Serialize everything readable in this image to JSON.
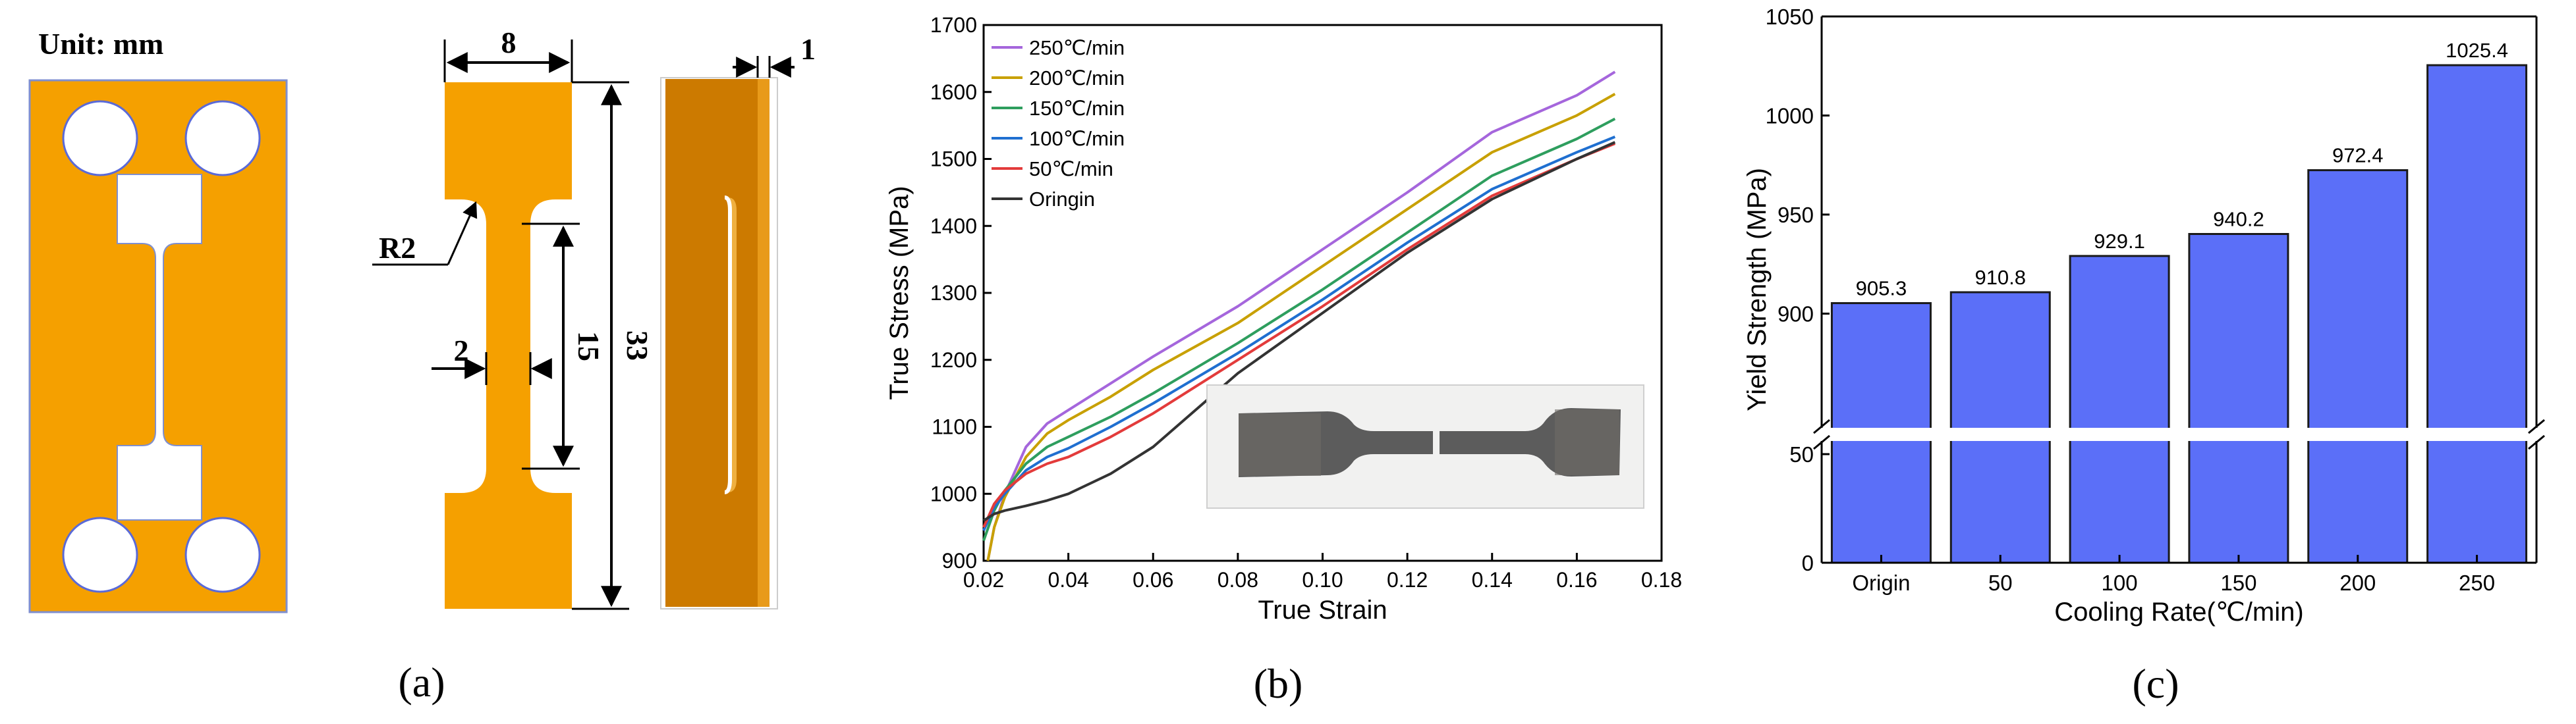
{
  "panel_a": {
    "unit_label": "Unit: mm",
    "caption": "(a)",
    "dims": {
      "width": "8",
      "thickness": "1",
      "radius": "R2",
      "gauge_width": "2",
      "gauge_length": "15",
      "total_length": "33"
    }
  },
  "panel_b": {
    "caption": "(b)"
  },
  "panel_c": {
    "caption": "(c)"
  },
  "colors": {
    "specimen": "#f5a000",
    "specimen_dark": "#cc7a00",
    "bar": "#5b6ff8"
  },
  "chart_data": [
    {
      "type": "line",
      "title": "",
      "xlabel": "True Strain",
      "ylabel": "True Stress (MPa)",
      "xlim": [
        0.02,
        0.18
      ],
      "ylim": [
        900,
        1700
      ],
      "xticks": [
        "0.02",
        "0.04",
        "0.06",
        "0.08",
        "0.10",
        "0.12",
        "0.14",
        "0.16",
        "0.18"
      ],
      "yticks": [
        "900",
        "1000",
        "1100",
        "1200",
        "1300",
        "1400",
        "1500",
        "1600",
        "1700"
      ],
      "legend_position": "top-left",
      "series": [
        {
          "name": "250℃/min",
          "color": "#a566dc",
          "x": [
            0.021,
            0.0225,
            0.025,
            0.03,
            0.035,
            0.04,
            0.05,
            0.06,
            0.08,
            0.1,
            0.12,
            0.14,
            0.16,
            0.169
          ],
          "y": [
            900,
            950,
            1000,
            1070,
            1105,
            1125,
            1165,
            1205,
            1280,
            1365,
            1450,
            1540,
            1595,
            1630
          ]
        },
        {
          "name": "200℃/min",
          "color": "#c8a000",
          "x": [
            0.021,
            0.0225,
            0.025,
            0.03,
            0.035,
            0.04,
            0.05,
            0.06,
            0.08,
            0.1,
            0.12,
            0.14,
            0.16,
            0.169
          ],
          "y": [
            900,
            950,
            995,
            1055,
            1090,
            1110,
            1145,
            1185,
            1255,
            1340,
            1425,
            1510,
            1565,
            1597
          ]
        },
        {
          "name": "150℃/min",
          "color": "#2e9e5e",
          "x": [
            0.02,
            0.0225,
            0.025,
            0.03,
            0.035,
            0.04,
            0.05,
            0.06,
            0.08,
            0.1,
            0.12,
            0.14,
            0.16,
            0.169
          ],
          "y": [
            930,
            975,
            1005,
            1045,
            1070,
            1085,
            1115,
            1150,
            1225,
            1305,
            1390,
            1475,
            1530,
            1560
          ]
        },
        {
          "name": "100℃/min",
          "color": "#1f6fd0",
          "x": [
            0.02,
            0.0225,
            0.025,
            0.03,
            0.035,
            0.04,
            0.05,
            0.06,
            0.08,
            0.1,
            0.12,
            0.14,
            0.16,
            0.169
          ],
          "y": [
            945,
            980,
            1000,
            1035,
            1055,
            1068,
            1100,
            1135,
            1210,
            1290,
            1375,
            1455,
            1510,
            1533
          ]
        },
        {
          "name": "50℃/min",
          "color": "#e33b3b",
          "x": [
            0.02,
            0.0225,
            0.025,
            0.03,
            0.035,
            0.04,
            0.05,
            0.06,
            0.08,
            0.1,
            0.12,
            0.14,
            0.16,
            0.169
          ],
          "y": [
            950,
            985,
            1005,
            1030,
            1045,
            1055,
            1085,
            1120,
            1200,
            1280,
            1365,
            1445,
            1500,
            1523
          ]
        },
        {
          "name": "Oringin",
          "color": "#333333",
          "x": [
            0.02,
            0.0225,
            0.025,
            0.03,
            0.035,
            0.04,
            0.05,
            0.06,
            0.08,
            0.1,
            0.12,
            0.14,
            0.16,
            0.169
          ],
          "y": [
            960,
            970,
            975,
            982,
            990,
            1000,
            1030,
            1070,
            1180,
            1270,
            1360,
            1440,
            1500,
            1525
          ]
        }
      ]
    },
    {
      "type": "bar",
      "title": "",
      "xlabel": "Cooling Rate(℃/min)",
      "ylabel": "Yield Strength (MPa)",
      "categories": [
        "Origin",
        "50",
        "100",
        "150",
        "200",
        "250"
      ],
      "values": [
        905.3,
        910.8,
        929.1,
        940.2,
        972.4,
        1025.4
      ],
      "value_labels": [
        "905.3",
        "910.8",
        "929.1",
        "940.2",
        "972.4",
        "1025.4"
      ],
      "ylim_upper": [
        850,
        1050
      ],
      "ylim_lower": [
        0,
        50
      ],
      "yticks_upper": [
        "900",
        "950",
        "1000",
        "1050"
      ],
      "yticks_lower": [
        "0",
        "50"
      ],
      "axis_break": true
    }
  ]
}
